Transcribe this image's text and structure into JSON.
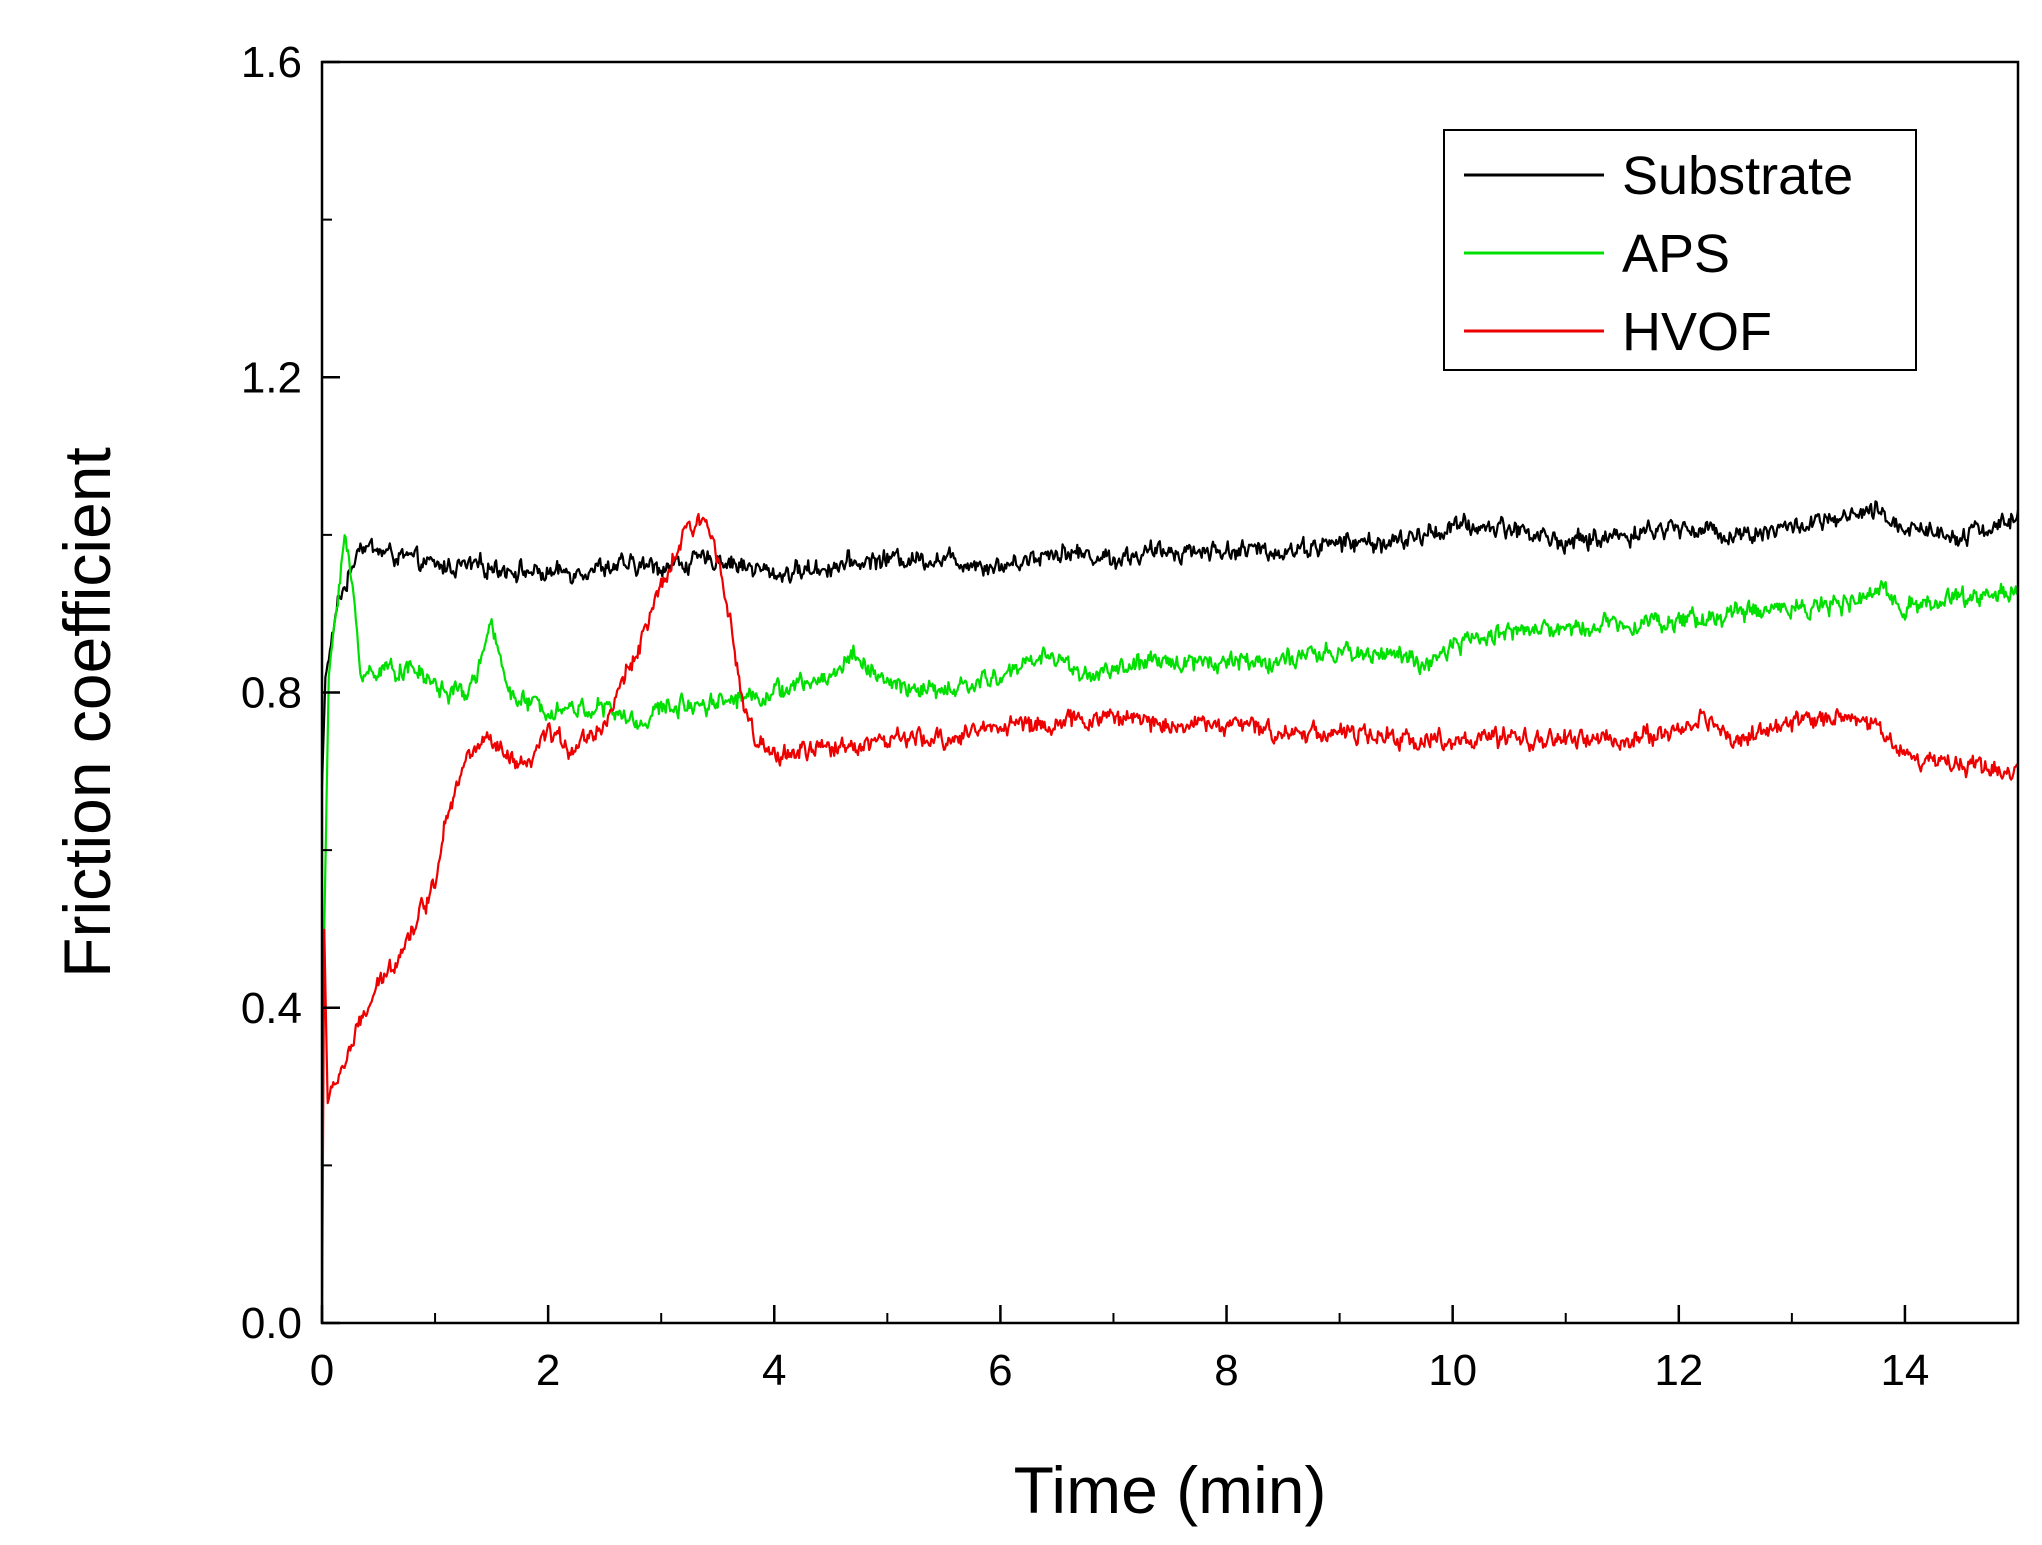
{
  "chart_data": {
    "type": "line",
    "title": "",
    "xlabel": "Time (min)",
    "ylabel": "Friction coefficient",
    "xlim": [
      0,
      15
    ],
    "ylim": [
      0,
      1.6
    ],
    "x_ticks": [
      {
        "value": 0,
        "label": "0"
      },
      {
        "value": 2,
        "label": "2"
      },
      {
        "value": 4,
        "label": "4"
      },
      {
        "value": 6,
        "label": "6"
      },
      {
        "value": 8,
        "label": "8"
      },
      {
        "value": 10,
        "label": "10"
      },
      {
        "value": 12,
        "label": "12"
      },
      {
        "value": 14,
        "label": "14"
      }
    ],
    "x_minor_step": 1,
    "y_ticks": [
      {
        "value": 0.0,
        "label": "0.0"
      },
      {
        "value": 0.4,
        "label": "0.4"
      },
      {
        "value": 0.8,
        "label": "0.8"
      },
      {
        "value": 1.2,
        "label": "1.2"
      },
      {
        "value": 1.6,
        "label": "1.6"
      }
    ],
    "y_minor_step": 0.2,
    "grid": false,
    "legend": {
      "position": "top-right",
      "boxed": true
    },
    "series": [
      {
        "name": "Substrate",
        "color": "#000000",
        "noise": 0.012,
        "x": [
          0,
          0.03,
          0.08,
          0.15,
          0.25,
          0.32,
          0.5,
          1.0,
          1.5,
          2.0,
          2.5,
          3.0,
          3.5,
          4.0,
          4.5,
          5.0,
          5.5,
          6.0,
          6.5,
          7.0,
          7.5,
          8.0,
          8.5,
          9.0,
          9.5,
          10.0,
          10.5,
          11.0,
          11.5,
          12.0,
          12.5,
          13.0,
          13.5,
          13.7,
          14.0,
          14.5,
          15.0
        ],
        "y": [
          0.68,
          0.82,
          0.86,
          0.92,
          0.95,
          0.99,
          0.98,
          0.96,
          0.96,
          0.95,
          0.96,
          0.96,
          0.97,
          0.95,
          0.96,
          0.97,
          0.97,
          0.96,
          0.98,
          0.97,
          0.98,
          0.98,
          0.98,
          0.99,
          0.99,
          1.01,
          1.01,
          0.99,
          1.0,
          1.01,
          1.0,
          1.01,
          1.02,
          1.03,
          1.01,
          1.0,
          1.02
        ]
      },
      {
        "name": "APS",
        "color": "#00e000",
        "noise": 0.012,
        "x": [
          0,
          0.02,
          0.06,
          0.12,
          0.2,
          0.28,
          0.35,
          0.5,
          0.8,
          1.1,
          1.3,
          1.5,
          1.7,
          2.0,
          2.5,
          2.8,
          3.0,
          3.5,
          4.0,
          4.5,
          4.7,
          5.0,
          5.5,
          6.0,
          6.4,
          6.8,
          7.0,
          7.5,
          8.0,
          8.5,
          9.0,
          9.5,
          9.8,
          10.0,
          10.5,
          11.0,
          11.5,
          12.0,
          12.5,
          13.0,
          13.5,
          13.8,
          14.0,
          14.5,
          15.0
        ],
        "y": [
          0.2,
          0.5,
          0.82,
          0.9,
          1.0,
          0.92,
          0.82,
          0.83,
          0.83,
          0.8,
          0.8,
          0.88,
          0.79,
          0.78,
          0.78,
          0.76,
          0.78,
          0.79,
          0.8,
          0.82,
          0.85,
          0.81,
          0.8,
          0.82,
          0.85,
          0.82,
          0.83,
          0.84,
          0.84,
          0.84,
          0.85,
          0.85,
          0.83,
          0.86,
          0.88,
          0.88,
          0.89,
          0.89,
          0.9,
          0.91,
          0.91,
          0.93,
          0.91,
          0.92,
          0.93
        ]
      },
      {
        "name": "HVOF",
        "color": "#ee0000",
        "noise": 0.012,
        "x": [
          0,
          0.02,
          0.05,
          0.1,
          0.2,
          0.4,
          0.6,
          0.8,
          1.0,
          1.1,
          1.3,
          1.45,
          1.6,
          1.8,
          2.0,
          2.2,
          2.5,
          2.8,
          3.0,
          3.2,
          3.4,
          3.55,
          3.7,
          3.85,
          4.0,
          4.5,
          5.0,
          5.5,
          6.0,
          6.5,
          7.0,
          7.5,
          8.0,
          8.5,
          9.0,
          9.5,
          10.0,
          10.5,
          11.0,
          11.5,
          12.0,
          12.2,
          12.5,
          13.0,
          13.3,
          13.6,
          13.8,
          14.0,
          14.5,
          15.0
        ],
        "y": [
          0.0,
          0.5,
          0.28,
          0.3,
          0.33,
          0.4,
          0.45,
          0.5,
          0.56,
          0.65,
          0.72,
          0.74,
          0.72,
          0.7,
          0.75,
          0.73,
          0.76,
          0.86,
          0.93,
          1.0,
          1.02,
          0.95,
          0.8,
          0.73,
          0.72,
          0.73,
          0.74,
          0.74,
          0.76,
          0.76,
          0.77,
          0.76,
          0.76,
          0.75,
          0.75,
          0.74,
          0.74,
          0.74,
          0.74,
          0.74,
          0.75,
          0.77,
          0.74,
          0.76,
          0.77,
          0.77,
          0.75,
          0.72,
          0.71,
          0.7
        ]
      }
    ]
  }
}
